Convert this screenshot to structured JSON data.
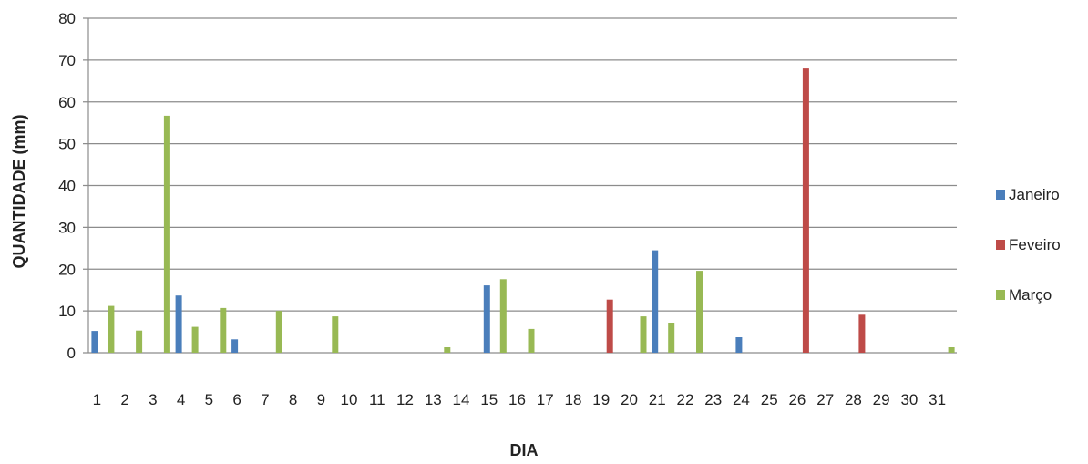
{
  "chart_data": {
    "type": "bar",
    "title": "",
    "xlabel": "DIA",
    "ylabel": "QUANTIDADE (mm)",
    "ylim": [
      0,
      80
    ],
    "yticks": [
      0,
      10,
      20,
      30,
      40,
      50,
      60,
      70,
      80
    ],
    "grid": "horizontal",
    "legend_position": "right",
    "categories": [
      "1",
      "2",
      "3",
      "4",
      "5",
      "6",
      "7",
      "8",
      "9",
      "10",
      "11",
      "12",
      "13",
      "14",
      "15",
      "16",
      "17",
      "18",
      "19",
      "20",
      "21",
      "22",
      "23",
      "24",
      "25",
      "26",
      "27",
      "28",
      "29",
      "30",
      "31"
    ],
    "series": [
      {
        "name": "Janeiro",
        "color": "#4a7ebb",
        "values": [
          5.2,
          0,
          0,
          13.7,
          0,
          3.2,
          0,
          0,
          0,
          0,
          0,
          0,
          0,
          0,
          16.1,
          0,
          0,
          0,
          0,
          0,
          24.5,
          0,
          0,
          3.7,
          0,
          0,
          0,
          0,
          0,
          0,
          0
        ]
      },
      {
        "name": "Feveiro",
        "color": "#be4b48",
        "values": [
          0,
          0,
          0,
          0,
          0,
          0,
          0,
          0,
          0,
          0,
          0,
          0,
          0,
          0,
          0,
          0,
          0,
          0,
          12.7,
          0,
          0,
          0,
          0,
          0,
          0,
          68.0,
          0,
          9.1,
          0,
          0,
          0
        ]
      },
      {
        "name": "Março",
        "color": "#98b954",
        "values": [
          11.2,
          5.3,
          56.7,
          6.2,
          10.7,
          0,
          10.0,
          0,
          8.7,
          0,
          0,
          0,
          1.3,
          0,
          17.6,
          5.7,
          0,
          0,
          0,
          8.7,
          7.2,
          19.6,
          0,
          0,
          0,
          0,
          0,
          0,
          0,
          0,
          1.3
        ]
      }
    ]
  }
}
